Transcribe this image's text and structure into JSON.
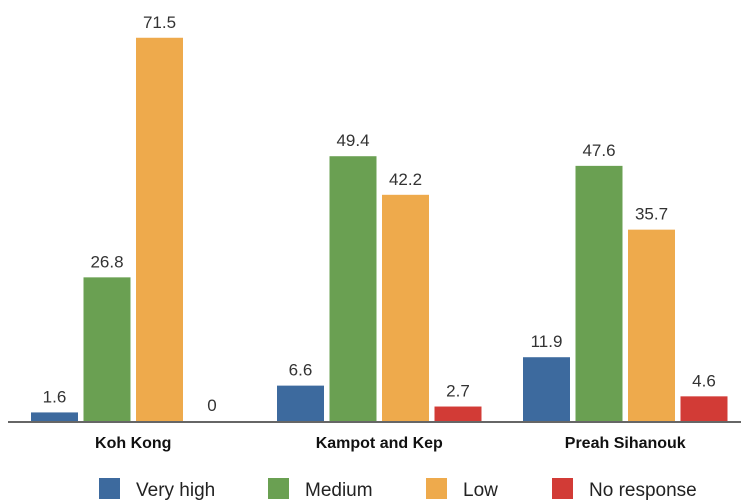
{
  "chart_data": {
    "type": "bar",
    "categories": [
      "Koh Kong",
      "Kampot and Kep",
      "Preah Sihanouk"
    ],
    "series": [
      {
        "name": "Very high",
        "color": "#3d6a9e",
        "values": [
          1.6,
          6.6,
          11.9
        ]
      },
      {
        "name": "Medium",
        "color": "#6aa052",
        "values": [
          26.8,
          49.4,
          47.6
        ]
      },
      {
        "name": "Low",
        "color": "#eeaa4c",
        "values": [
          71.5,
          42.2,
          35.7
        ]
      },
      {
        "name": "No response",
        "color": "#d23b36",
        "values": [
          0,
          2.7,
          4.6
        ]
      }
    ],
    "data_labels": [
      [
        "1.6",
        "6.6",
        "11.9"
      ],
      [
        "26.8",
        "49.4",
        "47.6"
      ],
      [
        "71.5",
        "42.2",
        "35.7"
      ],
      [
        "0",
        "2.7",
        "4.6"
      ]
    ],
    "ylim": [
      0,
      75
    ],
    "grid": false,
    "legend_position": "bottom",
    "title": "",
    "xlabel": "",
    "ylabel": ""
  }
}
